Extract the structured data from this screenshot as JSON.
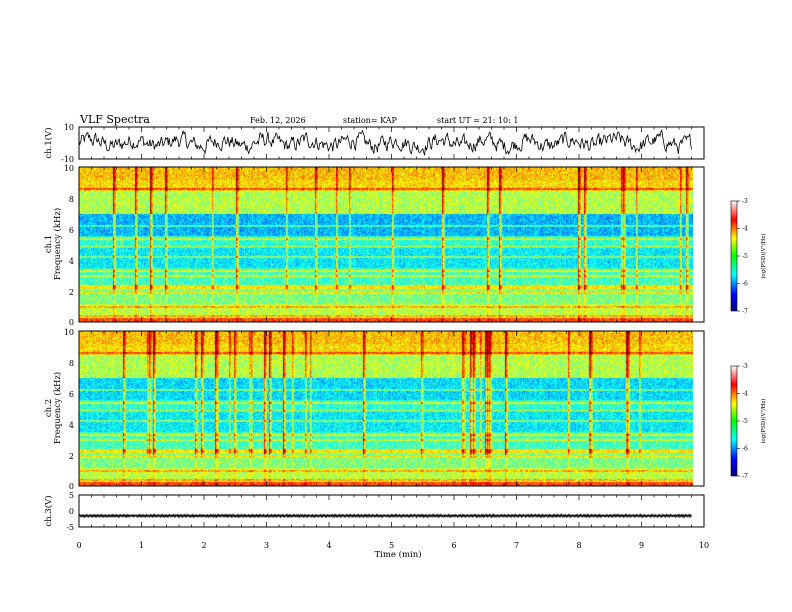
{
  "header": {
    "title": "VLF Spectra",
    "date": "Feb. 12, 2026",
    "station": "station= KAP",
    "start_ut": "start  UT  =   21: 10: 1"
  },
  "chart_data": [
    {
      "id": "ch1-waveform",
      "type": "line",
      "ylabel": "ch.1(V)",
      "ylim": [
        -10,
        10
      ],
      "yticks": [
        "10",
        "-10"
      ],
      "xlim": [
        0,
        10
      ],
      "data_end": 9.8,
      "amplitude": 5
    },
    {
      "id": "ch1-spectrogram",
      "type": "heatmap",
      "ylabel_top": "ch.1",
      "ylabel": "Frequency (kHz)",
      "ylim": [
        0,
        10
      ],
      "yticks": [
        "0",
        "2",
        "4",
        "6",
        "8",
        "10"
      ],
      "xlim": [
        0,
        10
      ],
      "data_end": 9.8,
      "colorbar": {
        "label": "log(PSD)(V²/Hz)",
        "range": [
          -7,
          -3
        ],
        "ticks": [
          "-3",
          "-4",
          "-5",
          "-6",
          "-7"
        ]
      }
    },
    {
      "id": "ch2-spectrogram",
      "type": "heatmap",
      "ylabel_top": "ch.2",
      "ylabel": "Frequency (kHz)",
      "ylim": [
        0,
        10
      ],
      "yticks": [
        "0",
        "2",
        "4",
        "6",
        "8",
        "10"
      ],
      "xlim": [
        0,
        10
      ],
      "data_end": 9.8,
      "colorbar": {
        "label": "log(PSD)(V²/Hz)",
        "range": [
          -7,
          -3
        ],
        "ticks": [
          "-3",
          "-4",
          "-5",
          "-6",
          "-7"
        ]
      }
    },
    {
      "id": "ch3-waveform",
      "type": "line",
      "ylabel": "ch.3(V)",
      "ylim": [
        -5,
        5
      ],
      "yticks": [
        "5",
        "0",
        "-5"
      ],
      "xlim": [
        0,
        10
      ],
      "data_end": 9.8,
      "level": -1.5,
      "amplitude": 0.4,
      "xlabel": "Time (min)",
      "xticks": [
        "0",
        "1",
        "2",
        "3",
        "4",
        "5",
        "6",
        "7",
        "8",
        "9",
        "10"
      ]
    }
  ],
  "colors": {
    "frame": "#000000",
    "trace": "#000000",
    "background": "#ffffff"
  }
}
